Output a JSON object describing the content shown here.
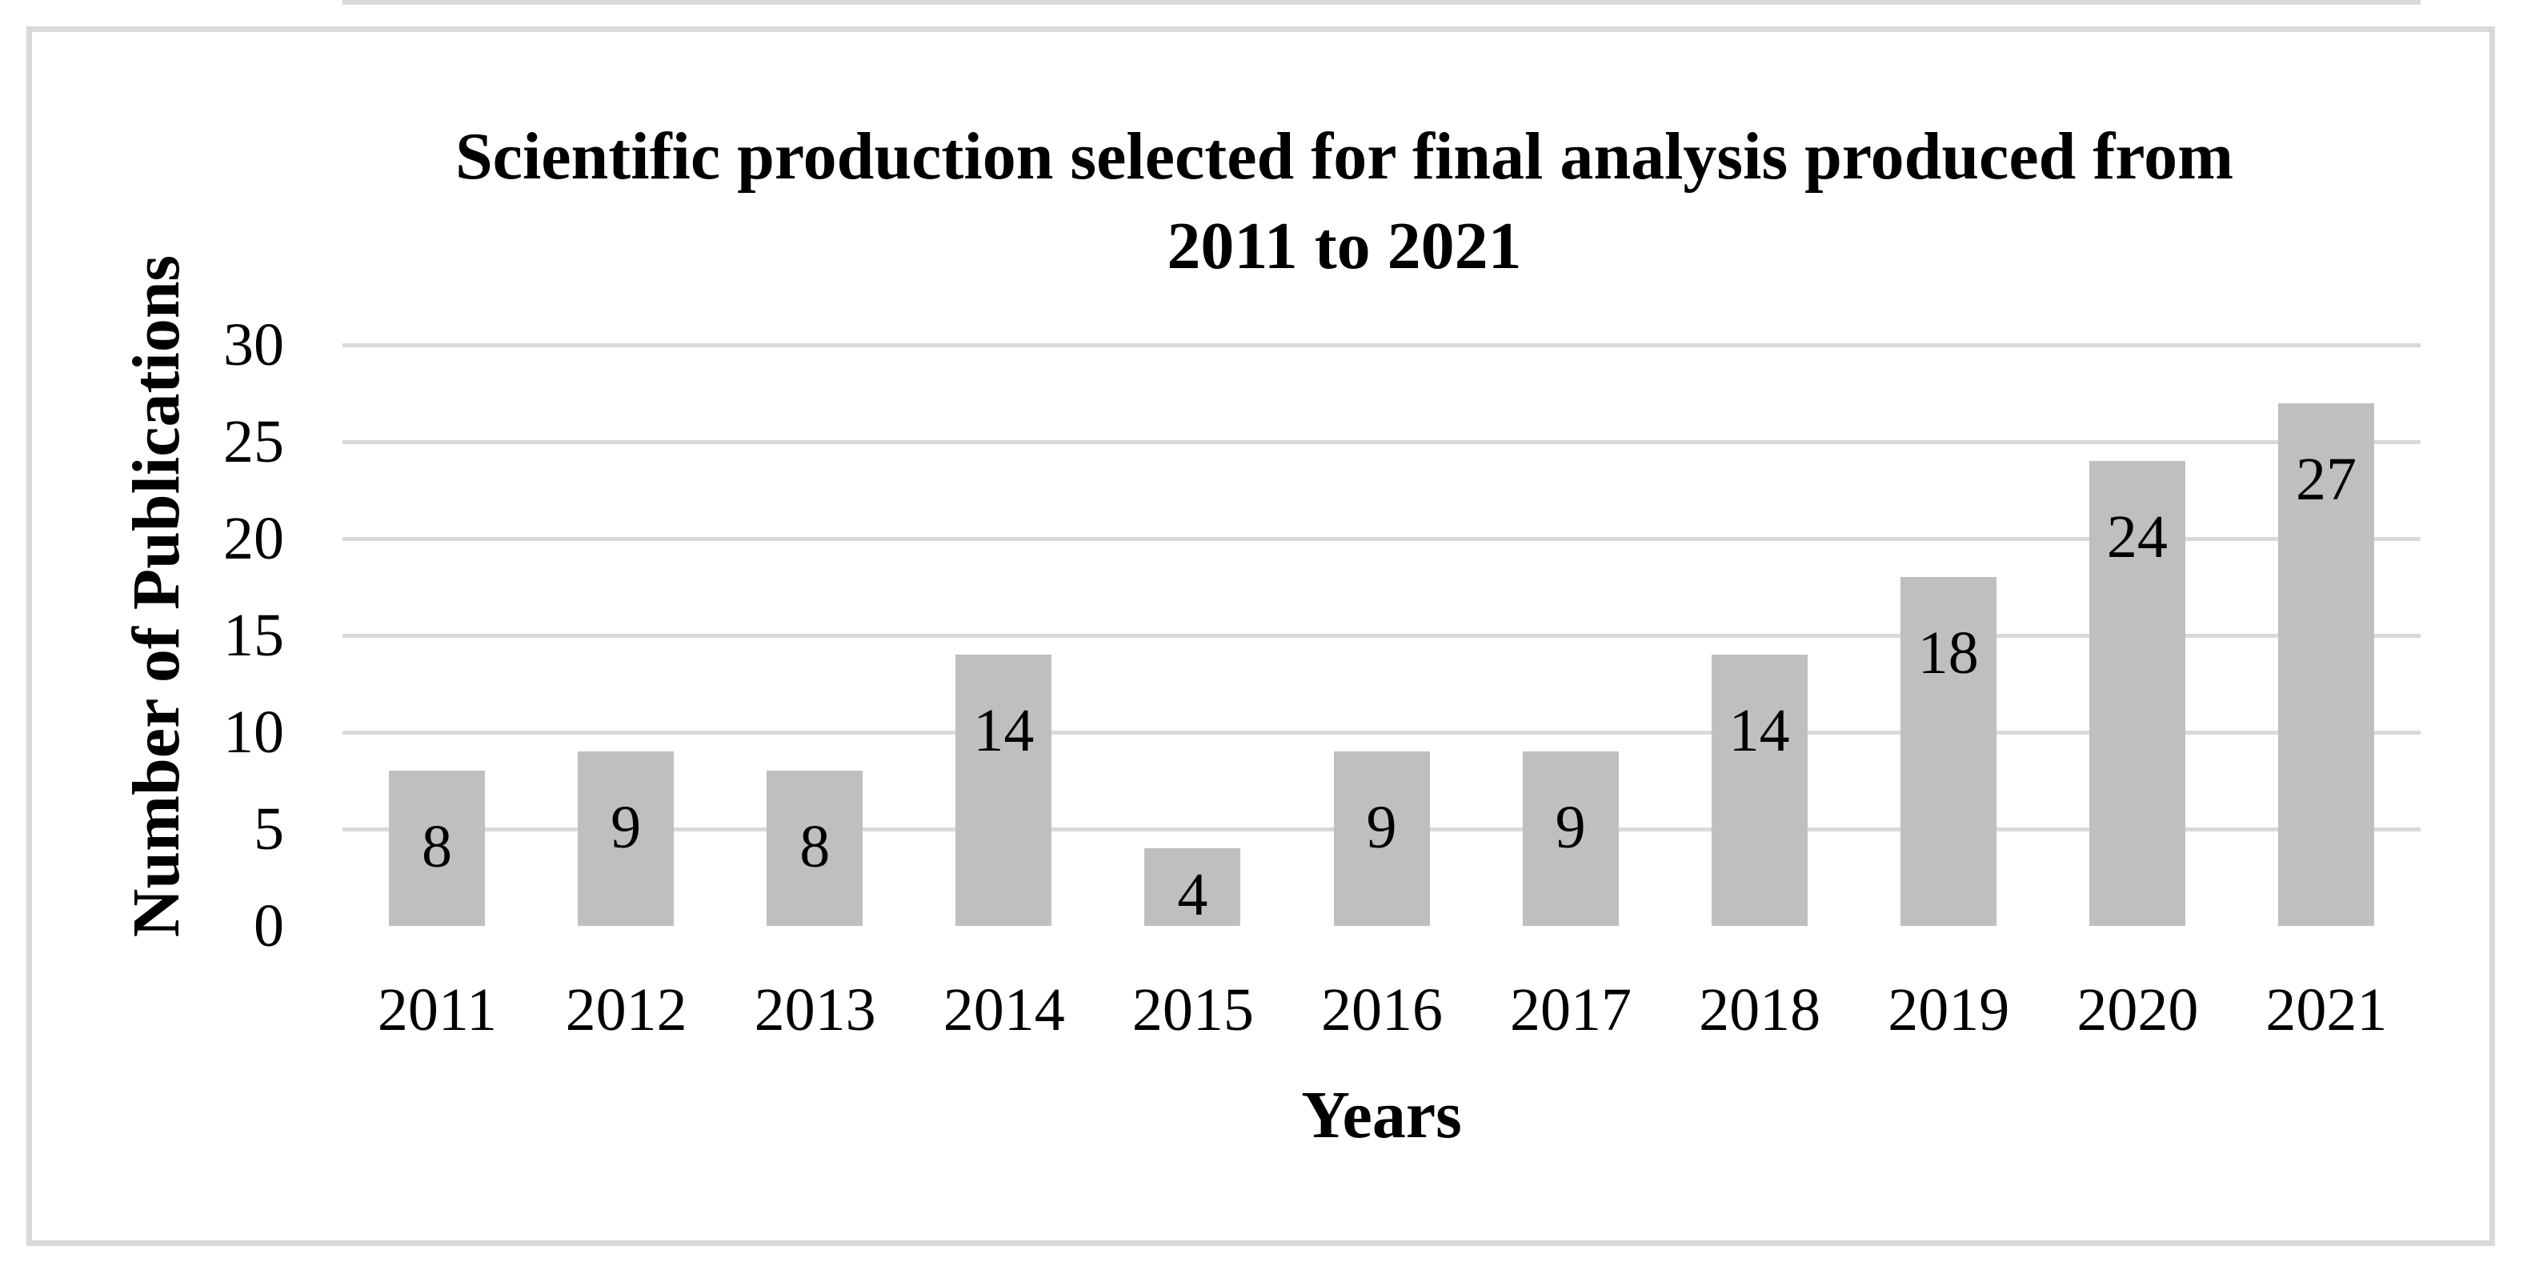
{
  "chart_data": {
    "type": "bar",
    "title": "Scientific production selected for final analysis produced from 2011 to 2021",
    "title_lines": [
      "Scientific production selected for final analysis produced from",
      "2011 to 2021"
    ],
    "xlabel": "Years",
    "ylabel": "Number of Publications",
    "categories": [
      "2011",
      "2012",
      "2013",
      "2014",
      "2015",
      "2016",
      "2017",
      "2018",
      "2019",
      "2020",
      "2021"
    ],
    "values": [
      8,
      9,
      8,
      14,
      4,
      9,
      9,
      14,
      18,
      24,
      27
    ],
    "data_labels": [
      "8",
      "9",
      "8",
      "14",
      "4",
      "9",
      "9",
      "14",
      "18",
      "24",
      "27"
    ],
    "ylim": [
      0,
      30
    ],
    "yticks": [
      0,
      5,
      10,
      15,
      20,
      25,
      30
    ],
    "grid": true,
    "legend": "none",
    "colors": {
      "bar_fill": "#bfbfbf",
      "gridline": "#d9d9d9",
      "axis_line": "#d9d9d9",
      "chart_border": "#d9d9d9",
      "text": "#000000",
      "background": "#ffffff"
    }
  }
}
